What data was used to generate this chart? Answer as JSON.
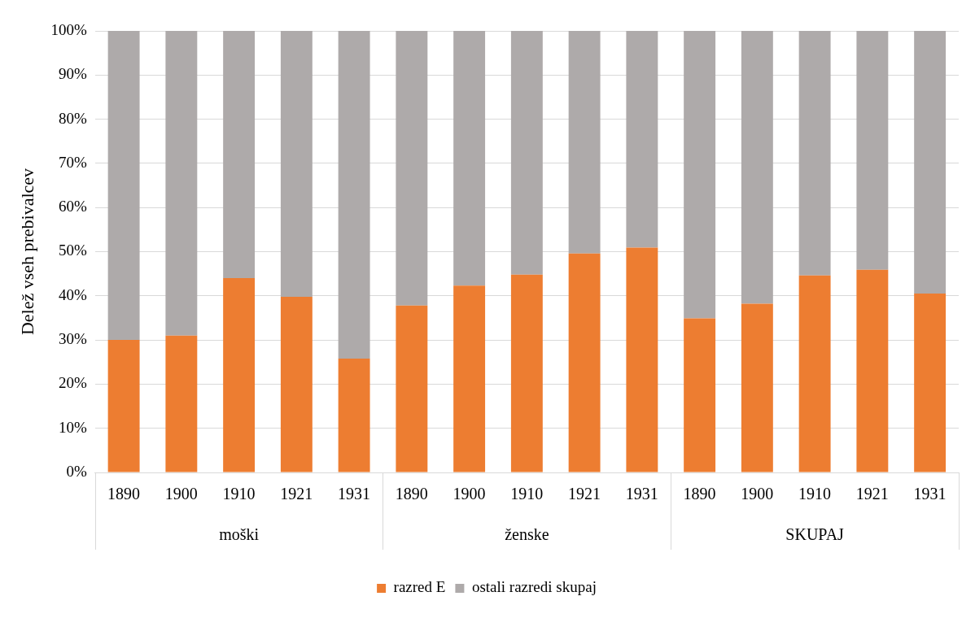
{
  "chart_data": {
    "type": "bar",
    "stacked": true,
    "ylabel": "Delež vseh prebivalcev",
    "categories": [
      "1890",
      "1900",
      "1910",
      "1921",
      "1931",
      "1890",
      "1900",
      "1910",
      "1921",
      "1931",
      "1890",
      "1900",
      "1910",
      "1921",
      "1931"
    ],
    "series": [
      {
        "name": "razred E",
        "color": "#ed7d31",
        "values": [
          30,
          31,
          44,
          39.8,
          25.8,
          37.8,
          42.3,
          44.8,
          49.6,
          50.9,
          34.9,
          38.2,
          44.6,
          45.9,
          40.5
        ]
      },
      {
        "name": "ostali razredi skupaj",
        "color": "#aeaaaa",
        "values": [
          70,
          69,
          56,
          60.2,
          74.2,
          62.2,
          57.7,
          55.2,
          50.4,
          49.1,
          65.1,
          61.8,
          55.4,
          54.1,
          59.5
        ]
      }
    ],
    "ylim": [
      0,
      100
    ],
    "yticks": [
      {
        "value": 0,
        "label": "0%"
      },
      {
        "value": 10,
        "label": "10%"
      },
      {
        "value": 20,
        "label": "20%"
      },
      {
        "value": 30,
        "label": "30%"
      },
      {
        "value": 40,
        "label": "40%"
      },
      {
        "value": 50,
        "label": "50%"
      },
      {
        "value": 60,
        "label": "60%"
      },
      {
        "value": 70,
        "label": "70%"
      },
      {
        "value": 80,
        "label": "80%"
      },
      {
        "value": 90,
        "label": "90%"
      },
      {
        "value": 100,
        "label": "100%"
      }
    ],
    "annotations": [
      "moški",
      "ženske",
      "SKUPAJ"
    ],
    "grid": "y",
    "legend": "bottom"
  }
}
